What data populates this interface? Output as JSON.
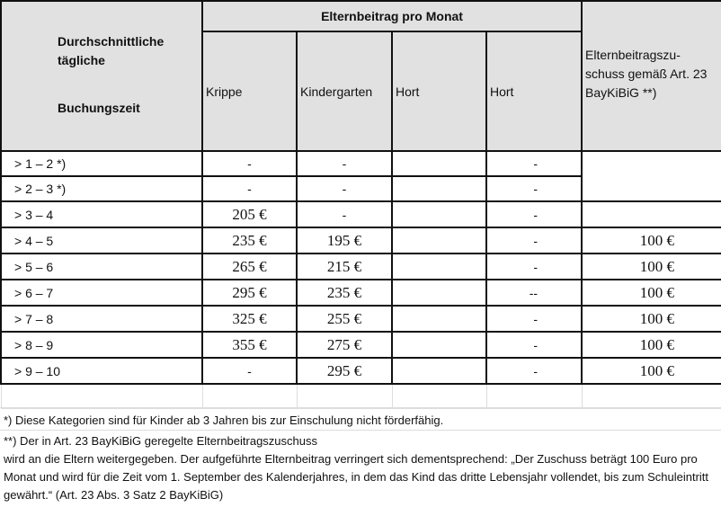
{
  "header": {
    "row_label_line1": "Durchschnittliche",
    "row_label_line2": "tägliche",
    "row_label_line3": "Buchungszeit",
    "group_label": "Elternbeitrag pro Monat",
    "columns": [
      "Krippe",
      "Kindergarten",
      "Hort",
      "Hort"
    ],
    "subsidy_label": "Elternbeitragszu-schuss gemäß Art. 23 BayKiBiG **)"
  },
  "rows": [
    {
      "time": "> 1 – 2 *)",
      "krippe": "-",
      "kindergarten": "-",
      "hort1": "",
      "hort2": "-",
      "subsidy": ""
    },
    {
      "time": "> 2 – 3 *)",
      "krippe": "-",
      "kindergarten": "-",
      "hort1": "",
      "hort2": "-",
      "subsidy": ""
    },
    {
      "time": "> 3 – 4",
      "krippe": "205 €",
      "kindergarten": "-",
      "hort1": "",
      "hort2": "-",
      "subsidy": ""
    },
    {
      "time": "> 4 – 5",
      "krippe": "235 €",
      "kindergarten": "195 €",
      "hort1": "",
      "hort2": "-",
      "subsidy": "100 €"
    },
    {
      "time": "> 5 – 6",
      "krippe": "265 €",
      "kindergarten": "215 €",
      "hort1": "",
      "hort2": "-",
      "subsidy": "100 €"
    },
    {
      "time": "> 6 – 7",
      "krippe": "295 €",
      "kindergarten": "235 €",
      "hort1": "",
      "hort2": "--",
      "subsidy": "100 €"
    },
    {
      "time": "> 7 – 8",
      "krippe": "325 €",
      "kindergarten": "255 €",
      "hort1": "",
      "hort2": "-",
      "subsidy": "100 €"
    },
    {
      "time": "> 8 – 9",
      "krippe": "355 €",
      "kindergarten": "275 €",
      "hort1": "",
      "hort2": "-",
      "subsidy": "100 €"
    },
    {
      "time": "> 9 – 10",
      "krippe": "-",
      "kindergarten": "295 €",
      "hort1": "",
      "hort2": "-",
      "subsidy": "100 €"
    }
  ],
  "footnotes": {
    "note1": "*) Diese Kategorien sind für Kinder ab 3 Jahren bis zur Einschulung nicht förderfähig.",
    "note2_line1": "**) Der in Art. 23 BayKiBiG geregelte Elternbeitragszuschuss",
    "note2_line2": "wird an die Eltern weitergegeben. Der aufgeführte Elternbeitrag verringert sich dementsprechend: „Der Zuschuss beträgt 100 Euro pro Monat und wird für die Zeit vom 1. September des Kalenderjahres, in dem das Kind das dritte Lebensjahr vollendet, bis zum Schuleintritt gewährt.“ (Art. 23 Abs. 3 Satz 2 BayKiBiG)"
  }
}
